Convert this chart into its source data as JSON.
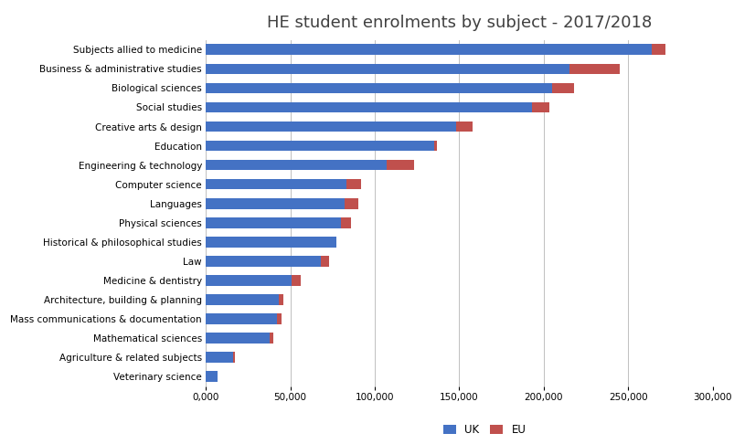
{
  "title": "HE student enrolments by subject - 2017/2018",
  "categories": [
    "Subjects allied to medicine",
    "Business & administrative studies",
    "Biological sciences",
    "Social studies",
    "Creative arts & design",
    "Education",
    "Engineering & technology",
    "Computer science",
    "Languages",
    "Physical sciences",
    "Historical & philosophical studies",
    "Law",
    "Medicine & dentistry",
    "Architecture, building & planning",
    "Mass communications & documentation",
    "Mathematical sciences",
    "Agriculture & related subjects",
    "Veterinary science"
  ],
  "uk_values": [
    264000,
    215000,
    205000,
    193000,
    148000,
    135000,
    107000,
    83000,
    82000,
    80000,
    77000,
    68000,
    51000,
    43000,
    42000,
    38000,
    16000,
    7000
  ],
  "eu_values": [
    8000,
    30000,
    13000,
    10000,
    10000,
    2000,
    16000,
    9000,
    8000,
    6000,
    0,
    5000,
    5000,
    3000,
    3000,
    2000,
    1000,
    0
  ],
  "uk_color": "#4472C4",
  "eu_color": "#C0504D",
  "background_color": "#FFFFFF",
  "bar_height": 0.55,
  "xlim": [
    0,
    300000
  ],
  "xtick_values": [
    0,
    50000,
    100000,
    150000,
    200000,
    250000,
    300000
  ],
  "xtick_labels": [
    "0,000",
    "50,000",
    "100,000",
    "150,000",
    "200,000",
    "250,000",
    "300,000"
  ],
  "legend_labels": [
    "UK",
    "EU"
  ],
  "title_fontsize": 13,
  "tick_fontsize": 7.5,
  "label_fontsize": 7.5
}
